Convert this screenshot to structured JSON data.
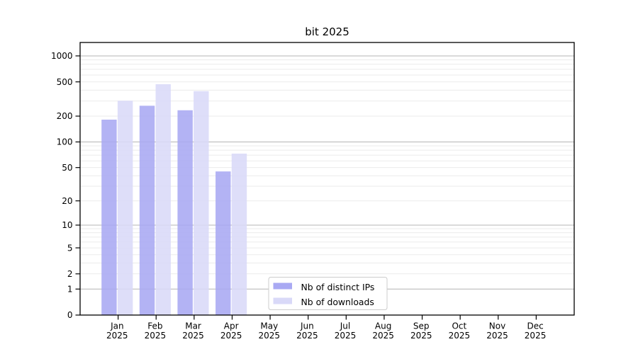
{
  "chart_data": {
    "type": "bar",
    "title": "bit 2025",
    "x_categories": [
      "Jan",
      "Feb",
      "Mar",
      "Apr",
      "May",
      "Jun",
      "Jul",
      "Aug",
      "Sep",
      "Oct",
      "Nov",
      "Dec"
    ],
    "x_year_label": "2025",
    "series": [
      {
        "name": "Nb of distinct IPs",
        "color": "#a9a9f3",
        "values": [
          182,
          264,
          234,
          45,
          null,
          null,
          null,
          null,
          null,
          null,
          null,
          null
        ]
      },
      {
        "name": "Nb of downloads",
        "color": "#d9d9f8",
        "values": [
          302,
          470,
          390,
          73,
          null,
          null,
          null,
          null,
          null,
          null,
          null,
          null
        ]
      }
    ],
    "y_axis": {
      "scale": "log1p",
      "ticks": [
        0,
        1,
        2,
        5,
        10,
        20,
        50,
        100,
        200,
        500,
        1000
      ],
      "major_gridlines": [
        1,
        10,
        100,
        1000
      ],
      "minor_gridline_multiples": [
        2,
        3,
        4,
        5,
        6,
        7,
        8,
        9
      ],
      "ylim": [
        0,
        1430
      ]
    },
    "legend": {
      "position": "lower center",
      "entries": [
        "Nb of distinct IPs",
        "Nb of downloads"
      ]
    },
    "grid": true
  },
  "style": {
    "background": "#ffffff",
    "axis_color": "#000000",
    "major_grid_color": "#b4b4b4",
    "minor_grid_color": "#ebebeb",
    "legend_border_color": "#cccccc",
    "text_color": "#000000"
  }
}
